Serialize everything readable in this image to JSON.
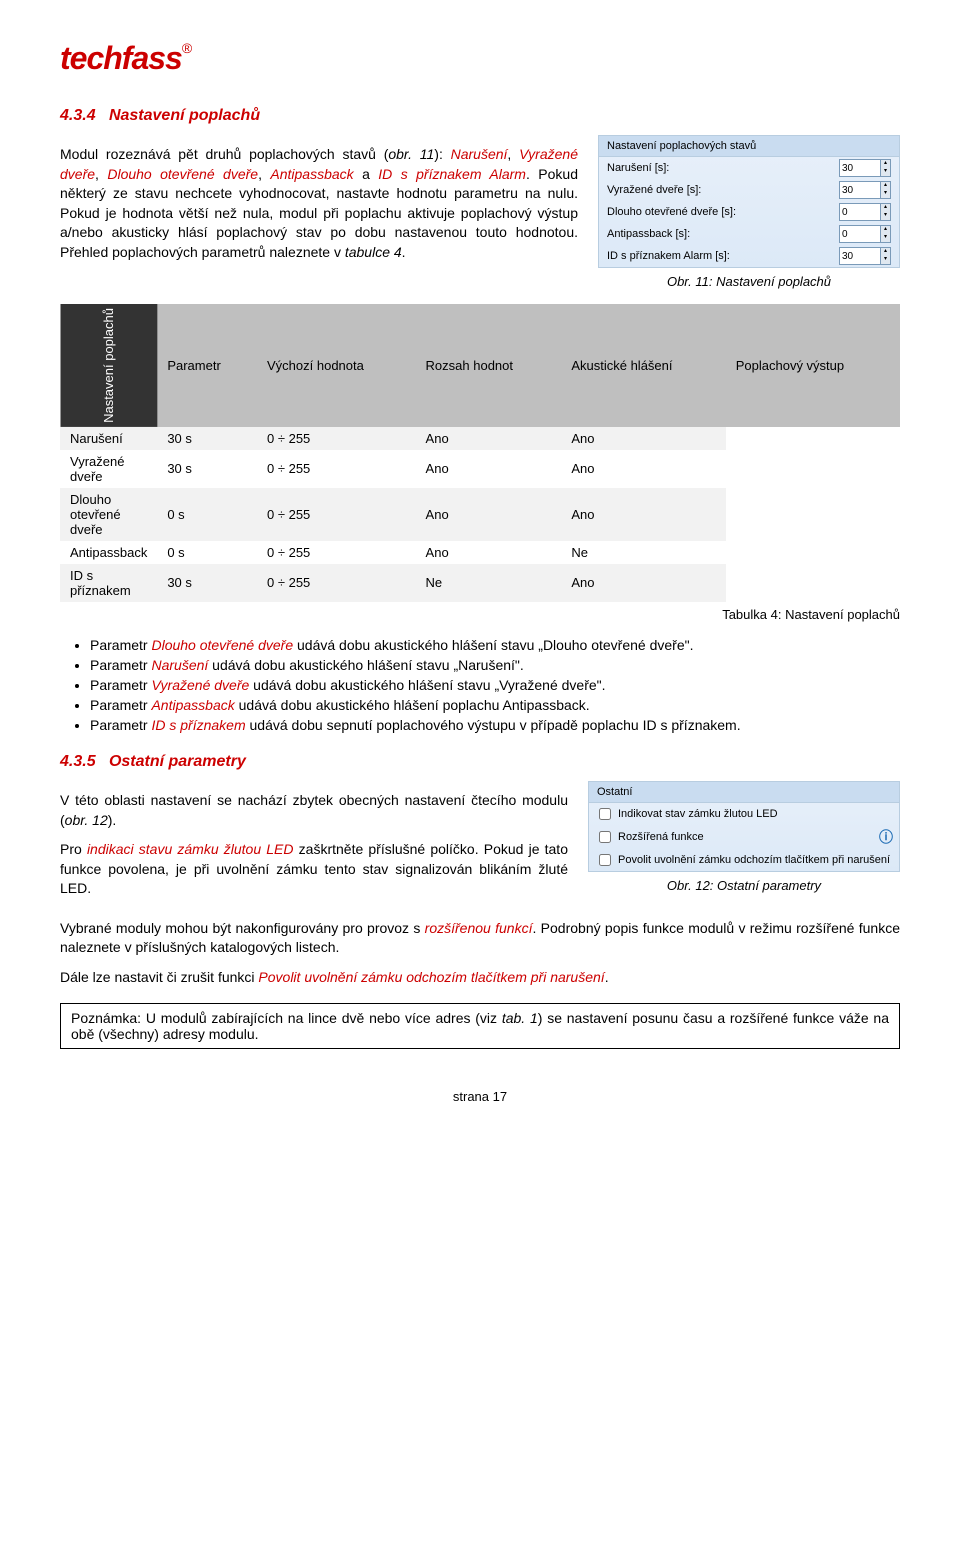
{
  "logo": "techfass",
  "section1": {
    "number": "4.3.4",
    "title": "Nastavení poplachů",
    "para1a": "Modul rozeznává pět druhů poplachových stavů (",
    "para1b": "obr. 11",
    "para1c": "): ",
    "para1d": "Narušení",
    "para1e": ", ",
    "para1f": "Vyražené dveře",
    "para1g": ", ",
    "para1h": "Dlouho otevřené dveře",
    "para1i": ", ",
    "para1j": "Antipassback",
    "para1k": " a ",
    "para1l": "ID s příznakem Alarm",
    "para1m": ". Pokud některý ze stavu nechcete vyhodnocovat, nastavte hodnotu parametru na nulu. Pokud je hodnota větší než nula, modul při poplachu aktivuje poplachový výstup a/nebo akusticky hlásí poplachový stav po dobu nastavenou touto hodnotou. Přehled poplachových parametrů naleznete v ",
    "para1n": "tabulce 4",
    "para1o": "."
  },
  "panel1": {
    "header": "Nastavení poplachových stavů",
    "rows": [
      {
        "label": "Narušení [s]:",
        "value": "30"
      },
      {
        "label": "Vyražené dveře [s]:",
        "value": "30"
      },
      {
        "label": "Dlouho otevřené dveře [s]:",
        "value": "0"
      },
      {
        "label": "Antipassback [s]:",
        "value": "0"
      },
      {
        "label": "ID s příznakem Alarm [s]:",
        "value": "30"
      }
    ],
    "caption": "Obr. 11: Nastavení poplachů"
  },
  "table": {
    "side_label": "Nastavení poplachů",
    "columns": [
      "Parametr",
      "Výchozí hodnota",
      "Rozsah hodnot",
      "Akustické hlášení",
      "Poplachový výstup"
    ],
    "rows": [
      [
        "Narušení",
        "30 s",
        "0 ÷ 255",
        "Ano",
        "Ano"
      ],
      [
        "Vyražené dveře",
        "30 s",
        "0 ÷ 255",
        "Ano",
        "Ano"
      ],
      [
        "Dlouho otevřené dveře",
        "0 s",
        "0 ÷ 255",
        "Ano",
        "Ano"
      ],
      [
        "Antipassback",
        "0 s",
        "0 ÷ 255",
        "Ano",
        "Ne"
      ],
      [
        "ID s příznakem",
        "30 s",
        "0 ÷ 255",
        "Ne",
        "Ano"
      ]
    ],
    "caption": "Tabulka 4: Nastavení poplachů",
    "header_bg": "#bfbfbf",
    "side_bg": "#333333"
  },
  "bullets": {
    "b1a": "Parametr ",
    "b1b": "Dlouho otevřené dveře",
    "b1c": " udává dobu akustického hlášení stavu „Dlouho otevřené dveře\".",
    "b2a": "Parametr ",
    "b2b": "Narušení",
    "b2c": " udává dobu akustického hlášení stavu „Narušení\".",
    "b3a": "Parametr ",
    "b3b": "Vyražené dveře",
    "b3c": " udává dobu akustického hlášení stavu „Vyražené dveře\".",
    "b4a": "Parametr ",
    "b4b": "Antipassback",
    "b4c": " udává dobu akustického hlášení poplachu Antipassback.",
    "b5a": "Parametr ",
    "b5b": "ID s příznakem",
    "b5c": " udává dobu sepnutí poplachového výstupu v případě poplachu ID s příznakem."
  },
  "section2": {
    "number": "4.3.5",
    "title": "Ostatní parametry",
    "para1a": "V této oblasti nastavení se nachází zbytek obecných nastavení čtecího modulu (",
    "para1b": "obr. 12",
    "para1c": ").",
    "para2a": "Pro ",
    "para2b": "indikaci stavu zámku žlutou LED",
    "para2c": " zaškrtněte příslušné políčko. Pokud je tato funkce povolena, je při uvolnění zámku tento stav signalizován blikáním žluté LED."
  },
  "panel2": {
    "header": "Ostatní",
    "items": [
      "Indikovat stav zámku žlutou LED",
      "Rozšířená funkce",
      "Povolit uvolnění zámku odchozím tlačítkem při narušení"
    ],
    "caption": "Obr. 12: Ostatní parametry"
  },
  "para3a": "Vybrané moduly mohou být nakonfigurovány pro provoz s ",
  "para3b": "rozšířenou funkcí",
  "para3c": ". Podrobný popis funkce modulů v režimu rozšířené funkce naleznete v příslušných katalogových listech.",
  "para4a": "Dále lze nastavit či zrušit funkci ",
  "para4b": "Povolit uvolnění zámku odchozím tlačítkem při narušení",
  "para4c": ".",
  "note": {
    "a": "Poznámka: U modulů zabírajících na lince dvě nebo více adres (viz ",
    "b": "tab. 1",
    "c": ") se nastavení posunu času a rozšířené funkce váže na obě (všechny) adresy modulu."
  },
  "page": "strana 17"
}
